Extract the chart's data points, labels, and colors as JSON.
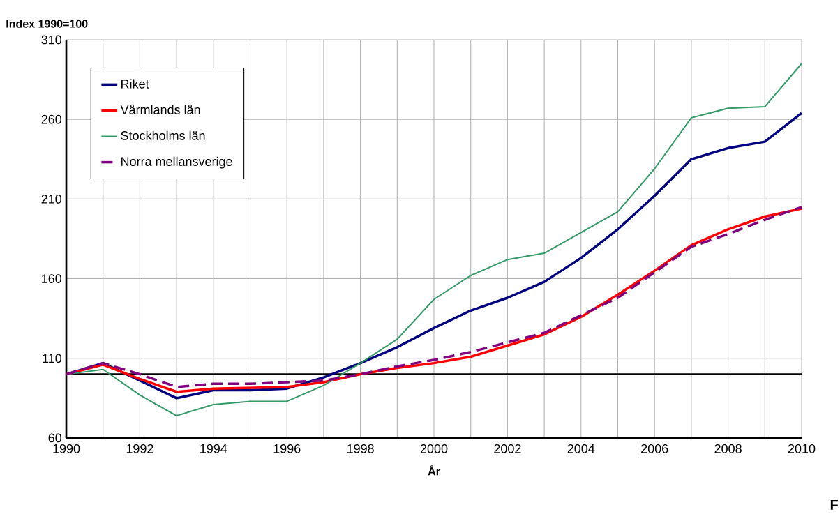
{
  "chart_data": {
    "type": "line",
    "ylabel": "Index 1990=100",
    "xlabel": "År",
    "x": [
      1990,
      1991,
      1992,
      1993,
      1994,
      1995,
      1996,
      1997,
      1998,
      1999,
      2000,
      2001,
      2002,
      2003,
      2004,
      2005,
      2006,
      2007,
      2008,
      2009,
      2010
    ],
    "series": [
      {
        "name": "Riket",
        "color": "#000080",
        "values": [
          100,
          107,
          96,
          85,
          90,
          90,
          91,
          98,
          107,
          117,
          129,
          140,
          148,
          158,
          173,
          191,
          212,
          235,
          242,
          246,
          264
        ]
      },
      {
        "name": "Värmlands län",
        "color": "#ff0000",
        "values": [
          100,
          106,
          97,
          89,
          91,
          91.5,
          92,
          95,
          100,
          104,
          107,
          111,
          118,
          125,
          136,
          150,
          165,
          181,
          191,
          199,
          204
        ]
      },
      {
        "name": "Stockholms län",
        "color": "#339966",
        "values": [
          100,
          103,
          87,
          74,
          81,
          83,
          83,
          93,
          107,
          122,
          147,
          162,
          172,
          176,
          189,
          202,
          229,
          261,
          267,
          268,
          295
        ]
      },
      {
        "name": "Norra mellansverige",
        "color": "#800080",
        "line_style": "dashed",
        "values": [
          100,
          107,
          100,
          92,
          94,
          94,
          95,
          96,
          100,
          105,
          109,
          114,
          120,
          126,
          137,
          148,
          164,
          180,
          188,
          197,
          205
        ]
      }
    ],
    "xlim": [
      1990,
      2010
    ],
    "xticks": [
      1990,
      {
        "value": 1991,
        "label": null
      },
      1992,
      {
        "value": 1993,
        "label": null
      },
      1994,
      {
        "value": 1995,
        "label": null
      },
      1996,
      {
        "value": 1997,
        "label": null
      },
      1998,
      {
        "value": 1999,
        "label": null
      },
      2000,
      {
        "value": 2001,
        "label": null
      },
      2002,
      {
        "value": 2003,
        "label": null
      },
      2004,
      {
        "value": 2005,
        "label": null
      },
      2006,
      {
        "value": 2007,
        "label": null
      },
      2008,
      {
        "value": 2009,
        "label": null
      },
      2010
    ],
    "ylim": [
      60,
      310
    ],
    "yticks": [
      60,
      110,
      160,
      210,
      260,
      310
    ],
    "ref_lines": [
      {
        "axis": "y",
        "value": 100,
        "color": "#000000"
      }
    ],
    "grid": true,
    "legend": "top left",
    "marker": "none",
    "annotations": [
      "F"
    ]
  }
}
